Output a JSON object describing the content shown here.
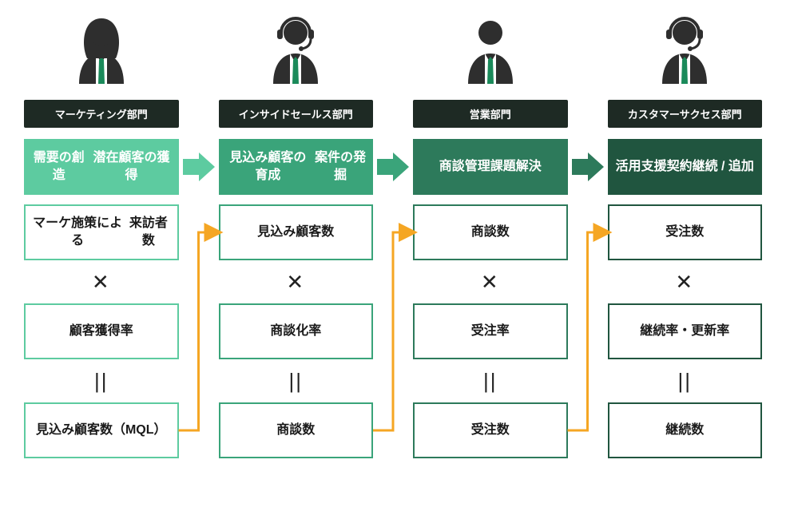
{
  "layout": {
    "type": "infographic",
    "columns": 4,
    "background_color": "#ffffff",
    "connector_color": "#f5a623",
    "connector_width": 3,
    "op_times": "✕",
    "op_eq": "||",
    "persona_body_color": "#2e2e2e",
    "persona_tie_color": "#1a8a5a",
    "headset_color": "#2e2e2e"
  },
  "columns": [
    {
      "id": "marketing",
      "persona": "female",
      "headset": false,
      "dept_label": "マーケティング部門",
      "dept_bg": "#1e2a24",
      "stage_lines": [
        "需要の創造",
        "潜在顧客の獲得"
      ],
      "stage_bg": "#5dcba0",
      "border_color": "#5dcba0",
      "metric1": "マーケ施策による\n来訪者数",
      "metric2": "顧客獲得率",
      "metric3": "見込み顧客数\n（MQL）"
    },
    {
      "id": "inside-sales",
      "persona": "male",
      "headset": true,
      "dept_label": "インサイドセールス部門",
      "dept_bg": "#1e2a24",
      "stage_lines": [
        "見込み顧客の育成",
        "案件の発掘"
      ],
      "stage_bg": "#3aa47a",
      "border_color": "#3aa47a",
      "metric1": "見込み顧客数",
      "metric2": "商談化率",
      "metric3": "商談数"
    },
    {
      "id": "sales",
      "persona": "male",
      "headset": false,
      "dept_label": "営業部門",
      "dept_bg": "#1e2a24",
      "stage_lines": [
        "商談管理",
        "課題解決"
      ],
      "stage_bg": "#2d7a5b",
      "border_color": "#2d7a5b",
      "metric1": "商談数",
      "metric2": "受注率",
      "metric3": "受注数"
    },
    {
      "id": "customer-success",
      "persona": "male",
      "headset": true,
      "dept_label": "カスタマーサクセス部門",
      "dept_bg": "#1e2a24",
      "stage_lines": [
        "活用支援",
        "契約継続 / 追加"
      ],
      "stage_bg": "#20553f",
      "border_color": "#20553f",
      "metric1": "受注数",
      "metric2": "継続率・更新率",
      "metric3": "継続数"
    }
  ],
  "stage_arrows": [
    {
      "fill": "#5dcba0"
    },
    {
      "fill": "#3aa47a"
    },
    {
      "fill": "#2d7a5b"
    }
  ]
}
